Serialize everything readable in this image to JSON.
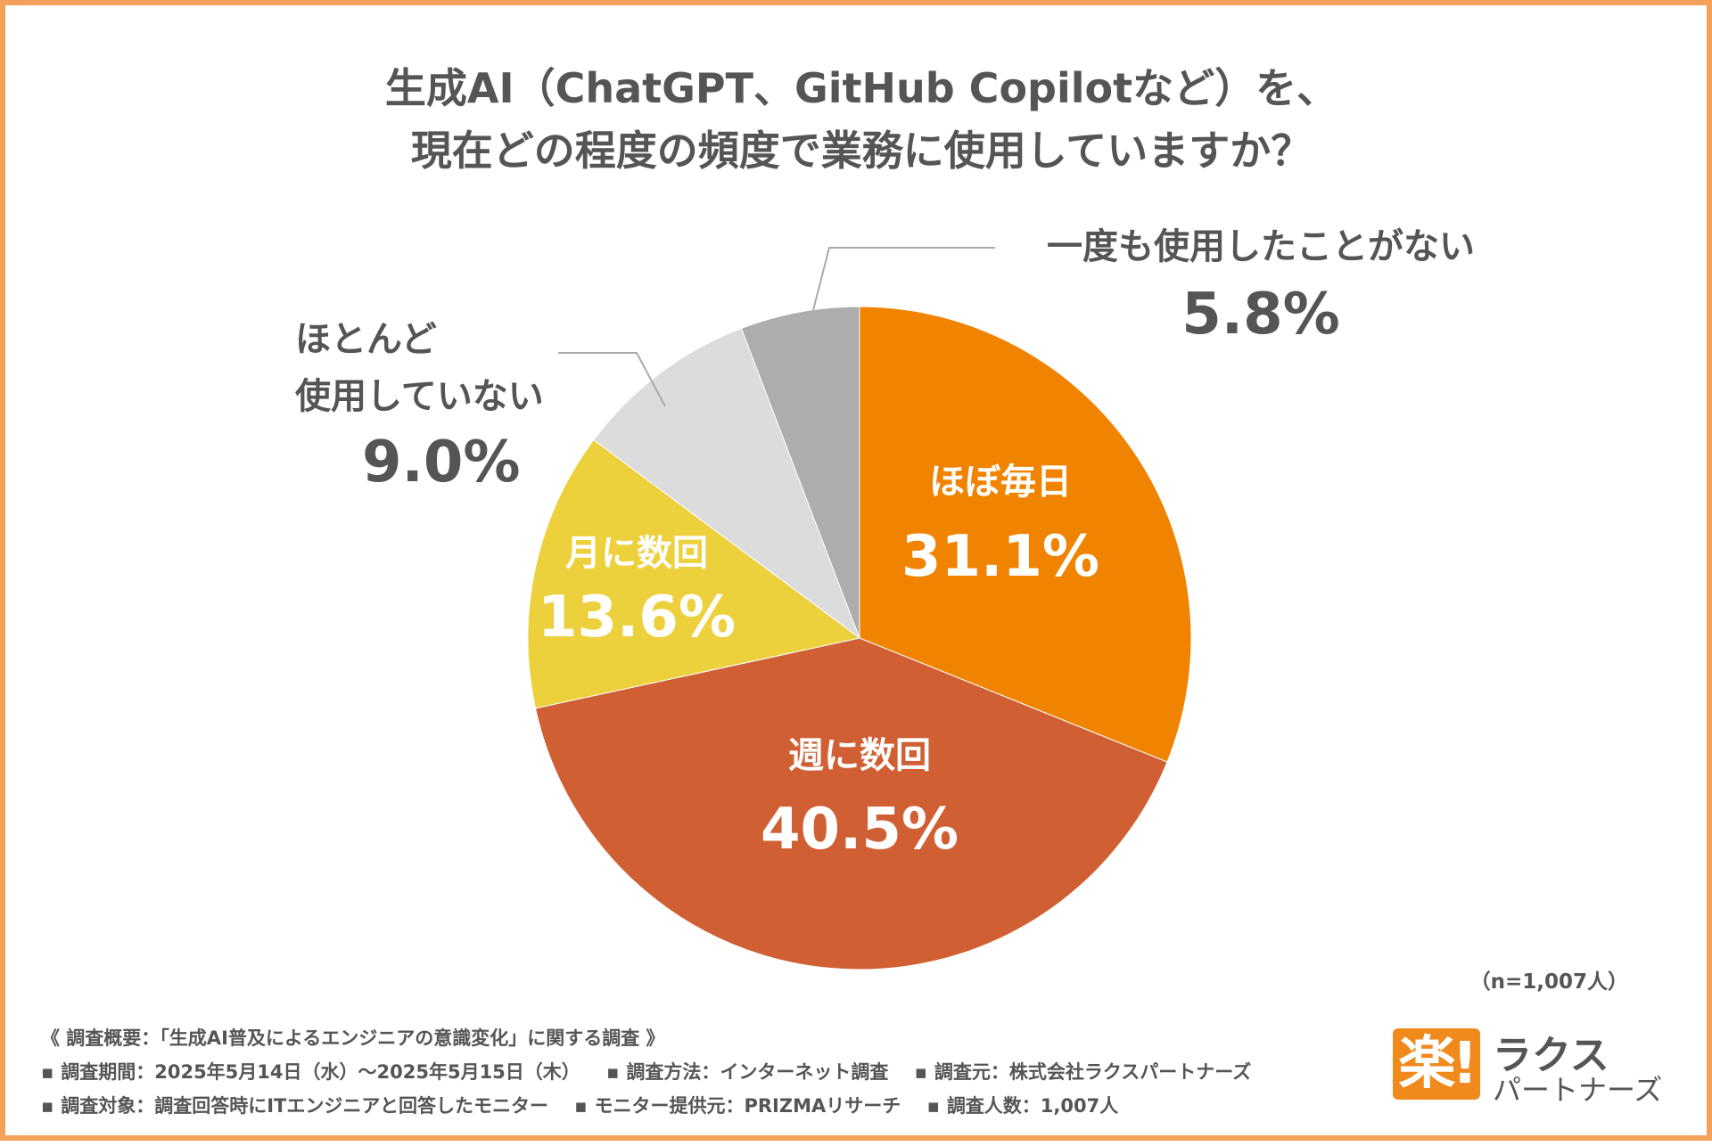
{
  "title": {
    "line1": "生成AI（ChatGPT、GitHub Copilotなど）を、",
    "line2": "現在どの程度の頻度で業務に使用していますか？"
  },
  "chart_data": {
    "type": "pie",
    "start": "12 o'clock, clockwise",
    "slices": [
      {
        "label": "ほぼ毎日",
        "value": 31.1,
        "display": "31.1%",
        "color": "#f08300",
        "label_inside": true
      },
      {
        "label": "週に数回",
        "value": 40.5,
        "display": "40.5%",
        "color": "#d06034",
        "label_inside": true
      },
      {
        "label": "月に数回",
        "value": 13.6,
        "display": "13.6%",
        "color": "#ecd03c",
        "label_inside": true
      },
      {
        "label_lines": [
          "ほとんど",
          "使用していない"
        ],
        "label": "ほとんど使用していない",
        "value": 9.0,
        "display": "9.0%",
        "color": "#dcdcdc",
        "label_inside": false
      },
      {
        "label": "一度も使用したことがない",
        "value": 5.8,
        "display": "5.8%",
        "color": "#adadad",
        "label_inside": false
      }
    ],
    "n_note": "（n=1,007人）"
  },
  "footer": {
    "heading": "《 調査概要：「生成AI普及によるエンジニアの意識変化」に関する調査 》",
    "row1": [
      "調査期間：2025年5月14日（水）～2025年5月15日（木）",
      "調査方法：インターネット調査",
      "調査元：株式会社ラクスパートナーズ"
    ],
    "row2": [
      "調査対象：調査回答時にITエンジニアと回答したモニター",
      "モニター提供元：PRIZMAリサーチ",
      "調査人数：1,007人"
    ]
  },
  "logo": {
    "mark": "楽!",
    "top": "ラクス",
    "bottom": "パートナーズ"
  }
}
